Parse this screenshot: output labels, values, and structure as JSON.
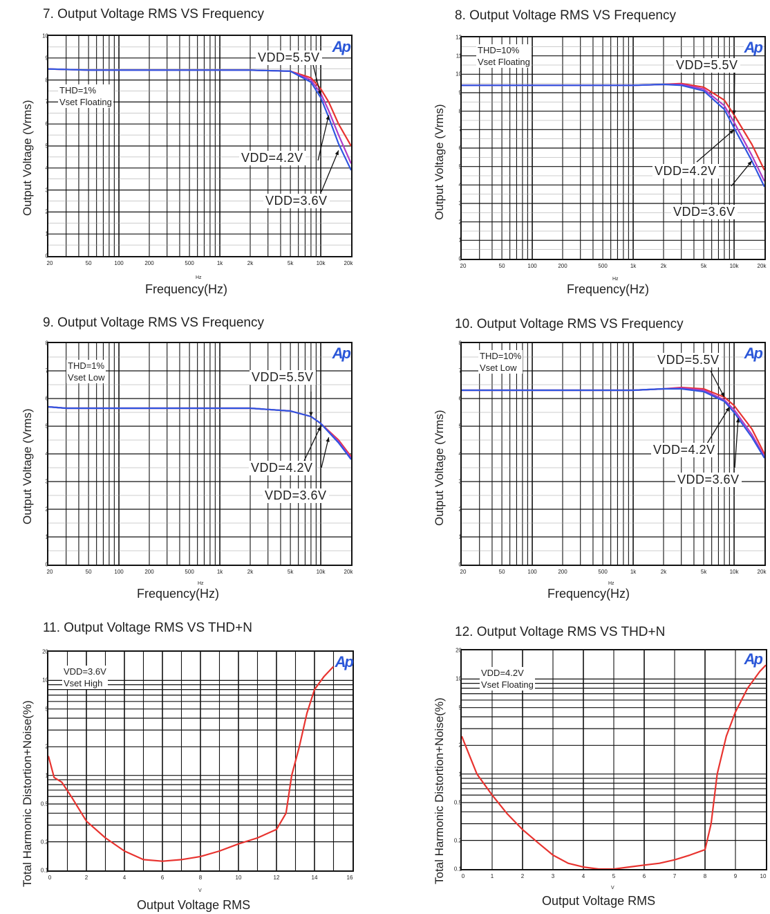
{
  "colors": {
    "series_a": "#e8332f",
    "series_b": "#b03cc6",
    "series_c": "#2f56e0",
    "brand": "#2b57d8"
  },
  "brand_mark": "Ap",
  "charts": [
    {
      "id": "c7",
      "title": "7. Output Voltage RMS VS Frequency",
      "xlabel": "Frequency(Hz)",
      "xsub": "Hz",
      "ylabel": "Output Voltage (Vrms)",
      "note": "THD=1%\nVset Floating",
      "labels": [
        "VDD=5.5V",
        "VDD=4.2V",
        "VDD=3.6V"
      ],
      "xticks": [
        "20",
        "50",
        "100",
        "200",
        "500",
        "1k",
        "2k",
        "5k",
        "10k",
        "20k"
      ],
      "yticks": [
        "0",
        "1",
        "2",
        "3",
        "4",
        "5",
        "6",
        "7",
        "8",
        "9",
        "10"
      ]
    },
    {
      "id": "c8",
      "title": "8. Output Voltage RMS VS Frequency",
      "xlabel": "Frequency(Hz)",
      "xsub": "Hz",
      "ylabel": "Output Voltage (Vrms)",
      "note": "THD=10%\nVset Floating",
      "labels": [
        "VDD=5.5V",
        "VDD=4.2V",
        "VDD=3.6V"
      ],
      "xticks": [
        "20",
        "50",
        "100",
        "200",
        "500",
        "1k",
        "2k",
        "5k",
        "10k",
        "20k"
      ],
      "yticks": [
        "0",
        "1",
        "2",
        "3",
        "4",
        "5",
        "6",
        "7",
        "8",
        "9",
        "10",
        "11",
        "12"
      ]
    },
    {
      "id": "c9",
      "title": "9. Output Voltage RMS VS Frequency",
      "xlabel": "Frequency(Hz)",
      "xsub": "Hz",
      "ylabel": "Output Voltage (Vrms)",
      "note": "THD=1%\nVset Low",
      "labels": [
        "VDD=5.5V",
        "VDD=4.2V",
        "VDD=3.6V"
      ],
      "xticks": [
        "20",
        "50",
        "100",
        "200",
        "500",
        "1k",
        "2k",
        "5k",
        "10k",
        "20k"
      ],
      "yticks": [
        "0",
        "1",
        "2",
        "3",
        "4",
        "5",
        "6",
        "7",
        "8"
      ]
    },
    {
      "id": "c10",
      "title": "10. Output Voltage RMS VS Frequency",
      "xlabel": "Frequency(Hz)",
      "xsub": "Hz",
      "ylabel": "Output Voltage (Vrms)",
      "note": "THD=10%\nVset Low",
      "labels": [
        "VDD=5.5V",
        "VDD=4.2V",
        "VDD=3.6V"
      ],
      "xticks": [
        "20",
        "50",
        "100",
        "200",
        "500",
        "1k",
        "2k",
        "5k",
        "10k",
        "20k"
      ],
      "yticks": [
        "0",
        "1",
        "2",
        "3",
        "4",
        "5",
        "6",
        "7",
        "8"
      ]
    },
    {
      "id": "c11",
      "title": "11. Output Voltage RMS VS THD+N",
      "xlabel": "Output Voltage RMS",
      "xsub": "V",
      "ylabel": "Total Harmonic Distortion+Noise(%)",
      "note": "VDD=3.6V\nVset High",
      "labels": [],
      "xticks": [
        "0",
        "2",
        "4",
        "6",
        "8",
        "10",
        "12",
        "14",
        "16"
      ],
      "yticks": [
        "0.1",
        "0.2",
        "0.5",
        "1",
        "2",
        "5",
        "10",
        "20"
      ]
    },
    {
      "id": "c12",
      "title": "12. Output Voltage RMS VS THD+N",
      "xlabel": "Output Voltage RMS",
      "xsub": "V",
      "ylabel": "Total Harmonic Distortion+Noise(%)",
      "note": "VDD=4.2V\nVset Floating",
      "labels": [],
      "xticks": [
        "0",
        "1",
        "2",
        "3",
        "4",
        "5",
        "6",
        "7",
        "8",
        "9",
        "10"
      ],
      "yticks": [
        "0.1",
        "0.2",
        "0.5",
        "1",
        "2",
        "5",
        "10",
        "20"
      ]
    }
  ],
  "chart_data": [
    {
      "type": "line",
      "title": "7. Output Voltage RMS VS Frequency",
      "xlabel": "Frequency(Hz)",
      "ylabel": "Output Voltage (Vrms)",
      "xscale": "log",
      "xlim": [
        20,
        20000
      ],
      "ylim": [
        0,
        10
      ],
      "x": [
        20,
        50,
        100,
        200,
        500,
        1000,
        2000,
        5000,
        8000,
        10000,
        12000,
        15000,
        20000
      ],
      "series": [
        {
          "name": "VDD=5.5V",
          "values": [
            8.5,
            8.45,
            8.45,
            8.45,
            8.45,
            8.45,
            8.45,
            8.4,
            8.1,
            7.6,
            7.0,
            6.0,
            5.0
          ]
        },
        {
          "name": "VDD=4.2V",
          "values": [
            8.5,
            8.45,
            8.45,
            8.45,
            8.45,
            8.45,
            8.45,
            8.4,
            8.0,
            7.4,
            6.6,
            5.5,
            4.2
          ]
        },
        {
          "name": "VDD=3.6V",
          "values": [
            8.5,
            8.45,
            8.45,
            8.45,
            8.45,
            8.45,
            8.45,
            8.4,
            7.9,
            7.2,
            6.3,
            5.1,
            3.9
          ]
        }
      ],
      "grid": true
    },
    {
      "type": "line",
      "title": "8. Output Voltage RMS VS Frequency",
      "xlabel": "Frequency(Hz)",
      "ylabel": "Output Voltage (Vrms)",
      "xscale": "log",
      "xlim": [
        20,
        20000
      ],
      "ylim": [
        0,
        12
      ],
      "x": [
        20,
        50,
        100,
        200,
        500,
        1000,
        2000,
        3000,
        5000,
        8000,
        10000,
        15000,
        20000
      ],
      "series": [
        {
          "name": "VDD=5.5V",
          "values": [
            9.4,
            9.4,
            9.4,
            9.4,
            9.4,
            9.4,
            9.45,
            9.5,
            9.3,
            8.6,
            7.8,
            6.2,
            4.8
          ]
        },
        {
          "name": "VDD=4.2V",
          "values": [
            9.4,
            9.4,
            9.4,
            9.4,
            9.4,
            9.4,
            9.45,
            9.45,
            9.2,
            8.3,
            7.4,
            5.6,
            4.2
          ]
        },
        {
          "name": "VDD=3.6V",
          "values": [
            9.4,
            9.4,
            9.4,
            9.4,
            9.4,
            9.4,
            9.45,
            9.4,
            9.1,
            8.1,
            7.1,
            5.3,
            3.9
          ]
        }
      ],
      "grid": true
    },
    {
      "type": "line",
      "title": "9. Output Voltage RMS VS Frequency",
      "xlabel": "Frequency(Hz)",
      "ylabel": "Output Voltage (Vrms)",
      "xscale": "log",
      "xlim": [
        20,
        20000
      ],
      "ylim": [
        0,
        8
      ],
      "x": [
        20,
        30,
        50,
        100,
        200,
        500,
        1000,
        2000,
        5000,
        8000,
        10000,
        15000,
        20000
      ],
      "series": [
        {
          "name": "VDD=5.5V",
          "values": [
            5.7,
            5.65,
            5.65,
            5.65,
            5.65,
            5.65,
            5.65,
            5.65,
            5.55,
            5.35,
            5.1,
            4.5,
            3.9
          ]
        },
        {
          "name": "VDD=4.2V",
          "values": [
            5.7,
            5.65,
            5.65,
            5.65,
            5.65,
            5.65,
            5.65,
            5.65,
            5.55,
            5.35,
            5.1,
            4.45,
            3.85
          ]
        },
        {
          "name": "VDD=3.6V",
          "values": [
            5.7,
            5.65,
            5.65,
            5.65,
            5.65,
            5.65,
            5.65,
            5.65,
            5.55,
            5.35,
            5.1,
            4.4,
            3.8
          ]
        }
      ],
      "grid": true
    },
    {
      "type": "line",
      "title": "10. Output Voltage RMS VS Frequency",
      "xlabel": "Frequency(Hz)",
      "ylabel": "Output Voltage (Vrms)",
      "xscale": "log",
      "xlim": [
        20,
        20000
      ],
      "ylim": [
        0,
        8
      ],
      "x": [
        20,
        50,
        100,
        200,
        500,
        1000,
        2000,
        3000,
        5000,
        8000,
        10000,
        15000,
        20000
      ],
      "series": [
        {
          "name": "VDD=5.5V",
          "values": [
            6.3,
            6.3,
            6.3,
            6.3,
            6.3,
            6.3,
            6.35,
            6.4,
            6.35,
            6.05,
            5.75,
            4.9,
            4.0
          ]
        },
        {
          "name": "VDD=4.2V",
          "values": [
            6.3,
            6.3,
            6.3,
            6.3,
            6.3,
            6.3,
            6.35,
            6.38,
            6.3,
            5.95,
            5.6,
            4.7,
            3.9
          ]
        },
        {
          "name": "VDD=3.6V",
          "values": [
            6.3,
            6.3,
            6.3,
            6.3,
            6.3,
            6.3,
            6.35,
            6.35,
            6.25,
            5.9,
            5.5,
            4.6,
            3.85
          ]
        }
      ],
      "grid": true
    },
    {
      "type": "line",
      "title": "11. Output Voltage RMS VS THD+N",
      "xlabel": "Output Voltage RMS",
      "ylabel": "Total Harmonic Distortion+Noise(%)",
      "yscale": "log",
      "xlim": [
        0,
        16
      ],
      "ylim": [
        0.1,
        20
      ],
      "x": [
        0,
        0.3,
        0.7,
        1.2,
        2,
        3,
        4,
        5,
        6,
        7,
        8,
        9,
        10,
        11,
        12,
        12.5,
        12.8,
        13.2,
        13.6,
        14,
        14.5,
        15
      ],
      "series": [
        {
          "name": "",
          "values": [
            1.6,
            0.95,
            0.85,
            0.6,
            0.33,
            0.22,
            0.16,
            0.13,
            0.125,
            0.13,
            0.14,
            0.16,
            0.19,
            0.22,
            0.27,
            0.4,
            1.0,
            2.0,
            4.5,
            8.0,
            11.0,
            14.0
          ]
        }
      ],
      "grid": true
    },
    {
      "type": "line",
      "title": "12. Output Voltage RMS VS THD+N",
      "xlabel": "Output Voltage RMS",
      "ylabel": "Total Harmonic Distortion+Noise(%)",
      "yscale": "log",
      "xlim": [
        0,
        10
      ],
      "ylim": [
        0.1,
        20
      ],
      "x": [
        0,
        0.5,
        1,
        1.5,
        2,
        2.5,
        3,
        3.5,
        4,
        4.5,
        5,
        5.5,
        6,
        6.5,
        7,
        7.5,
        8,
        8.2,
        8.4,
        8.7,
        9,
        9.4,
        9.8,
        10
      ],
      "series": [
        {
          "name": "",
          "values": [
            2.5,
            1.0,
            0.6,
            0.38,
            0.26,
            0.19,
            0.14,
            0.115,
            0.105,
            0.1,
            0.1,
            0.105,
            0.11,
            0.115,
            0.125,
            0.14,
            0.16,
            0.3,
            1.0,
            2.5,
            4.5,
            8.0,
            12.0,
            14.0
          ]
        }
      ],
      "grid": true
    }
  ]
}
